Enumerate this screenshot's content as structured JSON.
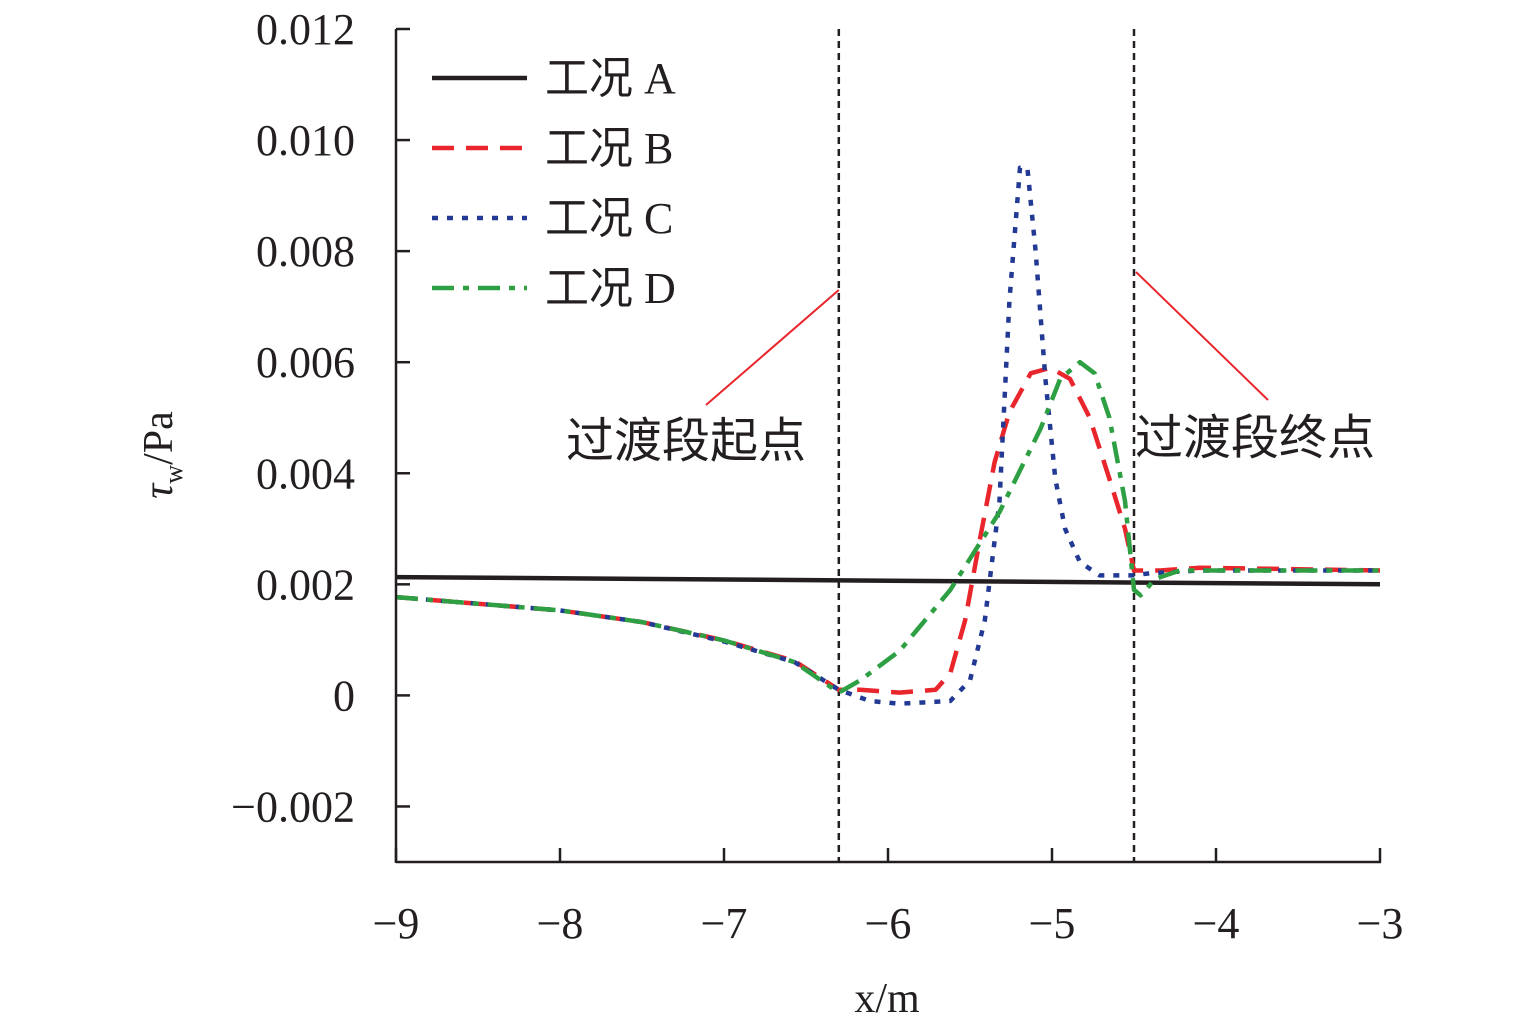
{
  "chart_data": {
    "type": "line",
    "xlabel": "x/m",
    "ylabel_main": "τ",
    "ylabel_sub": "w",
    "ylabel_unit": "/Pa",
    "xlim": [
      -9,
      -3
    ],
    "ylim": [
      -0.003,
      0.012
    ],
    "xticks": [
      -9,
      -8,
      -7,
      -6,
      -5,
      -4,
      -3
    ],
    "xtick_labels": [
      "−9",
      "−8",
      "−7",
      "−6",
      "−5",
      "−4",
      "−3"
    ],
    "yticks": [
      -0.002,
      0,
      0.002,
      0.004,
      0.006,
      0.008,
      0.01,
      0.012
    ],
    "ytick_labels": [
      "−0.002",
      "0",
      "0.002",
      "0.004",
      "0.006",
      "0.008",
      "0.010",
      "0.012"
    ],
    "grid": false,
    "legend_position": "top-left",
    "vlines": [
      -6.3,
      -4.5
    ],
    "annotations": [
      {
        "text": "过渡段起点",
        "points_to_x": -6.3
      },
      {
        "text": "过渡段终点",
        "points_to_x": -4.5
      }
    ],
    "series": [
      {
        "name": "工况 A",
        "color": "#231f20",
        "dash": "solid",
        "x": [
          -9,
          -3
        ],
        "y": [
          0.00213,
          0.002
        ]
      },
      {
        "name": "工况 B",
        "color": "#e8262c",
        "dash": "dashed",
        "x": [
          -9,
          -8,
          -7.5,
          -7,
          -6.57,
          -6.3,
          -6.17,
          -5.93,
          -5.71,
          -5.62,
          -5.53,
          -5.44,
          -5.35,
          -5.26,
          -5.13,
          -5.01,
          -4.89,
          -4.77,
          -4.65,
          -4.555,
          -4.5,
          -4.34,
          -4.1,
          -3
        ],
        "y": [
          0.00177,
          0.00153,
          0.00132,
          0.00099,
          0.00062,
          0.0001,
          0.0001,
          5e-05,
          0.0001,
          0.0004,
          0.00135,
          0.0028,
          0.0042,
          0.0051,
          0.0058,
          0.0059,
          0.0057,
          0.005,
          0.0039,
          0.003,
          0.00225,
          0.00225,
          0.0023,
          0.00225
        ]
      },
      {
        "name": "工况 C",
        "color": "#233a94",
        "dash": "dotted",
        "x": [
          -9,
          -8,
          -7.5,
          -7,
          -6.57,
          -6.3,
          -6.11,
          -5.93,
          -5.62,
          -5.5,
          -5.41,
          -5.32,
          -5.26,
          -5.195,
          -5.15,
          -5.1,
          -5.04,
          -4.98,
          -4.92,
          -4.83,
          -4.71,
          -4.51,
          -4.4,
          -4.1,
          -3
        ],
        "y": [
          0.00177,
          0.00153,
          0.00132,
          0.00097,
          0.0006,
          0.0001,
          -0.0001,
          -0.00015,
          -0.0001,
          0.00027,
          0.00135,
          0.0035,
          0.0071,
          0.0095,
          0.0095,
          0.008,
          0.0057,
          0.0039,
          0.003,
          0.0024,
          0.00216,
          0.00216,
          0.0022,
          0.00225,
          0.00225
        ]
      },
      {
        "name": "工况 D",
        "color": "#2ea043",
        "dash": "dashdot",
        "x": [
          -9,
          -8,
          -7.5,
          -7,
          -6.57,
          -6.3,
          -6.17,
          -5.93,
          -5.62,
          -5.32,
          -5.07,
          -4.95,
          -4.83,
          -4.74,
          -4.65,
          -4.555,
          -4.5,
          -4.46,
          -4.37,
          -4.22,
          -3
        ],
        "y": [
          0.00177,
          0.00153,
          0.00132,
          0.00099,
          0.0006,
          5e-05,
          0.00027,
          0.0008,
          0.0019,
          0.0033,
          0.0048,
          0.0057,
          0.006,
          0.0058,
          0.005,
          0.0035,
          0.0019,
          0.0018,
          0.0021,
          0.00225,
          0.00225
        ]
      }
    ]
  }
}
